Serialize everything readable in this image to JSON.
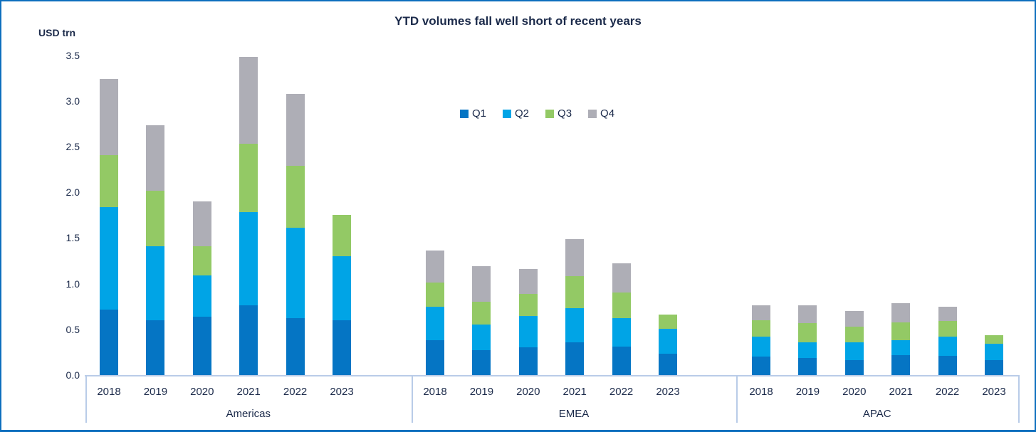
{
  "accent_colors": {
    "frame_border": "#0e6fbe",
    "axis_line": "#b9cce8",
    "text": "#1b2a4a"
  },
  "chart_data": {
    "type": "bar",
    "stacked": true,
    "title": "YTD volumes fall well short of recent years",
    "ylabel": "USD trn",
    "ylim": [
      0,
      3.5
    ],
    "ytick_labels": [
      "0.0",
      "0.5",
      "1.0",
      "1.5",
      "2.0",
      "2.5",
      "3.0",
      "3.5"
    ],
    "grid": false,
    "legend_position": "inside-top-center",
    "group_labels": [
      "Americas",
      "EMEA",
      "APAC"
    ],
    "years": [
      "2018",
      "2019",
      "2020",
      "2021",
      "2022",
      "2023"
    ],
    "series": [
      {
        "name": "Q1",
        "color": "#0575c4",
        "values": [
          [
            0.72,
            0.6,
            0.64,
            0.76,
            0.62,
            0.6
          ],
          [
            0.38,
            0.27,
            0.3,
            0.36,
            0.31,
            0.23
          ],
          [
            0.2,
            0.19,
            0.16,
            0.22,
            0.21,
            0.16
          ]
        ]
      },
      {
        "name": "Q2",
        "color": "#00a4e6",
        "values": [
          [
            1.12,
            0.81,
            0.45,
            1.02,
            0.99,
            0.7
          ],
          [
            0.37,
            0.28,
            0.35,
            0.37,
            0.31,
            0.28
          ],
          [
            0.22,
            0.17,
            0.2,
            0.16,
            0.21,
            0.18
          ]
        ]
      },
      {
        "name": "Q3",
        "color": "#93c965",
        "values": [
          [
            0.57,
            0.61,
            0.32,
            0.75,
            0.68,
            0.45
          ],
          [
            0.26,
            0.25,
            0.24,
            0.35,
            0.28,
            0.15
          ],
          [
            0.18,
            0.21,
            0.17,
            0.2,
            0.17,
            0.1
          ]
        ]
      },
      {
        "name": "Q4",
        "color": "#aeaeb6",
        "values": [
          [
            0.83,
            0.71,
            0.49,
            0.95,
            0.79,
            0.0
          ],
          [
            0.35,
            0.39,
            0.27,
            0.41,
            0.32,
            0.0
          ],
          [
            0.16,
            0.19,
            0.17,
            0.21,
            0.16,
            0.0
          ]
        ]
      }
    ]
  }
}
